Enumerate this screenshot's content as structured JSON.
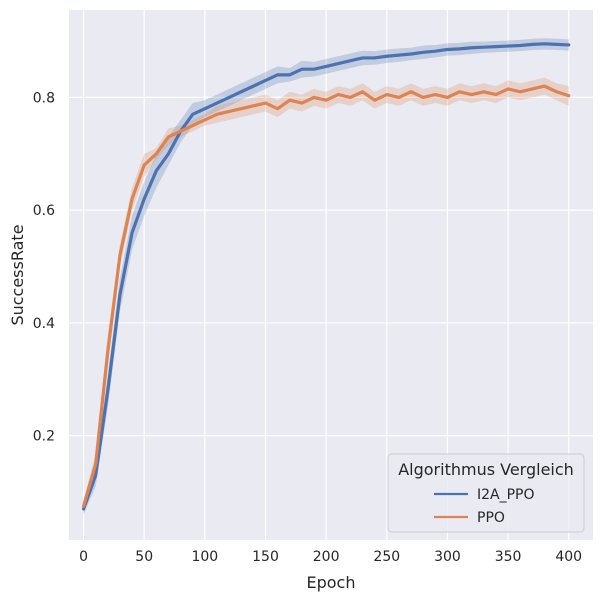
{
  "chart_data": {
    "type": "line",
    "xlabel": "Epoch",
    "ylabel": "SuccessRate",
    "xlim": [
      -12,
      420
    ],
    "ylim": [
      0.015,
      0.955
    ],
    "xticks": [
      0,
      50,
      100,
      150,
      200,
      250,
      300,
      350,
      400
    ],
    "yticks": [
      0.2,
      0.4,
      0.6,
      0.8
    ],
    "grid": true,
    "background": "#eaeaf2",
    "legend": {
      "title": "Algorithmus Vergleich",
      "placement": "lower-right",
      "entries": [
        "I2A_PPO",
        "PPO"
      ]
    },
    "series": [
      {
        "name": "I2A_PPO",
        "color": "#4c72b0",
        "x": [
          0,
          10,
          20,
          30,
          40,
          50,
          60,
          70,
          80,
          90,
          100,
          110,
          120,
          130,
          140,
          150,
          160,
          170,
          180,
          190,
          200,
          210,
          220,
          230,
          240,
          250,
          260,
          270,
          280,
          290,
          300,
          310,
          320,
          330,
          340,
          350,
          360,
          370,
          380,
          390,
          400
        ],
        "y": [
          0.07,
          0.13,
          0.28,
          0.45,
          0.56,
          0.62,
          0.67,
          0.7,
          0.74,
          0.77,
          0.78,
          0.79,
          0.8,
          0.81,
          0.82,
          0.83,
          0.84,
          0.84,
          0.85,
          0.85,
          0.855,
          0.86,
          0.865,
          0.87,
          0.87,
          0.873,
          0.875,
          0.877,
          0.88,
          0.882,
          0.885,
          0.886,
          0.888,
          0.889,
          0.89,
          0.891,
          0.892,
          0.894,
          0.895,
          0.894,
          0.893
        ],
        "lower": [
          0.06,
          0.11,
          0.25,
          0.42,
          0.53,
          0.59,
          0.64,
          0.68,
          0.72,
          0.75,
          0.765,
          0.775,
          0.785,
          0.795,
          0.805,
          0.815,
          0.825,
          0.828,
          0.835,
          0.837,
          0.842,
          0.847,
          0.852,
          0.857,
          0.858,
          0.861,
          0.863,
          0.866,
          0.868,
          0.871,
          0.874,
          0.875,
          0.877,
          0.879,
          0.88,
          0.881,
          0.882,
          0.884,
          0.885,
          0.884,
          0.883
        ],
        "upper": [
          0.085,
          0.15,
          0.31,
          0.48,
          0.59,
          0.65,
          0.7,
          0.73,
          0.76,
          0.79,
          0.795,
          0.805,
          0.815,
          0.825,
          0.835,
          0.845,
          0.855,
          0.852,
          0.865,
          0.863,
          0.868,
          0.873,
          0.878,
          0.883,
          0.882,
          0.885,
          0.887,
          0.888,
          0.892,
          0.893,
          0.896,
          0.897,
          0.899,
          0.899,
          0.9,
          0.901,
          0.902,
          0.904,
          0.905,
          0.904,
          0.903
        ]
      },
      {
        "name": "PPO",
        "color": "#dd8452",
        "x": [
          0,
          10,
          20,
          30,
          40,
          50,
          60,
          70,
          80,
          90,
          100,
          110,
          120,
          130,
          140,
          150,
          160,
          170,
          180,
          190,
          200,
          210,
          220,
          230,
          240,
          250,
          260,
          270,
          280,
          290,
          300,
          310,
          320,
          330,
          340,
          350,
          360,
          370,
          380,
          390,
          400
        ],
        "y": [
          0.075,
          0.15,
          0.35,
          0.52,
          0.62,
          0.68,
          0.7,
          0.73,
          0.74,
          0.75,
          0.76,
          0.77,
          0.775,
          0.78,
          0.785,
          0.79,
          0.78,
          0.795,
          0.79,
          0.8,
          0.795,
          0.805,
          0.8,
          0.81,
          0.795,
          0.805,
          0.8,
          0.81,
          0.8,
          0.805,
          0.8,
          0.81,
          0.805,
          0.81,
          0.805,
          0.815,
          0.81,
          0.815,
          0.82,
          0.81,
          0.803
        ],
        "lower": [
          0.065,
          0.13,
          0.32,
          0.5,
          0.6,
          0.66,
          0.69,
          0.715,
          0.73,
          0.74,
          0.75,
          0.755,
          0.76,
          0.765,
          0.77,
          0.775,
          0.765,
          0.78,
          0.775,
          0.785,
          0.78,
          0.79,
          0.785,
          0.795,
          0.78,
          0.79,
          0.785,
          0.795,
          0.785,
          0.79,
          0.785,
          0.795,
          0.79,
          0.795,
          0.79,
          0.8,
          0.795,
          0.8,
          0.805,
          0.795,
          0.785
        ],
        "upper": [
          0.085,
          0.17,
          0.38,
          0.54,
          0.64,
          0.7,
          0.71,
          0.745,
          0.75,
          0.76,
          0.77,
          0.785,
          0.79,
          0.795,
          0.8,
          0.805,
          0.795,
          0.81,
          0.805,
          0.815,
          0.81,
          0.82,
          0.815,
          0.825,
          0.81,
          0.82,
          0.815,
          0.825,
          0.815,
          0.82,
          0.815,
          0.825,
          0.82,
          0.825,
          0.82,
          0.83,
          0.825,
          0.83,
          0.835,
          0.825,
          0.82
        ]
      }
    ]
  }
}
